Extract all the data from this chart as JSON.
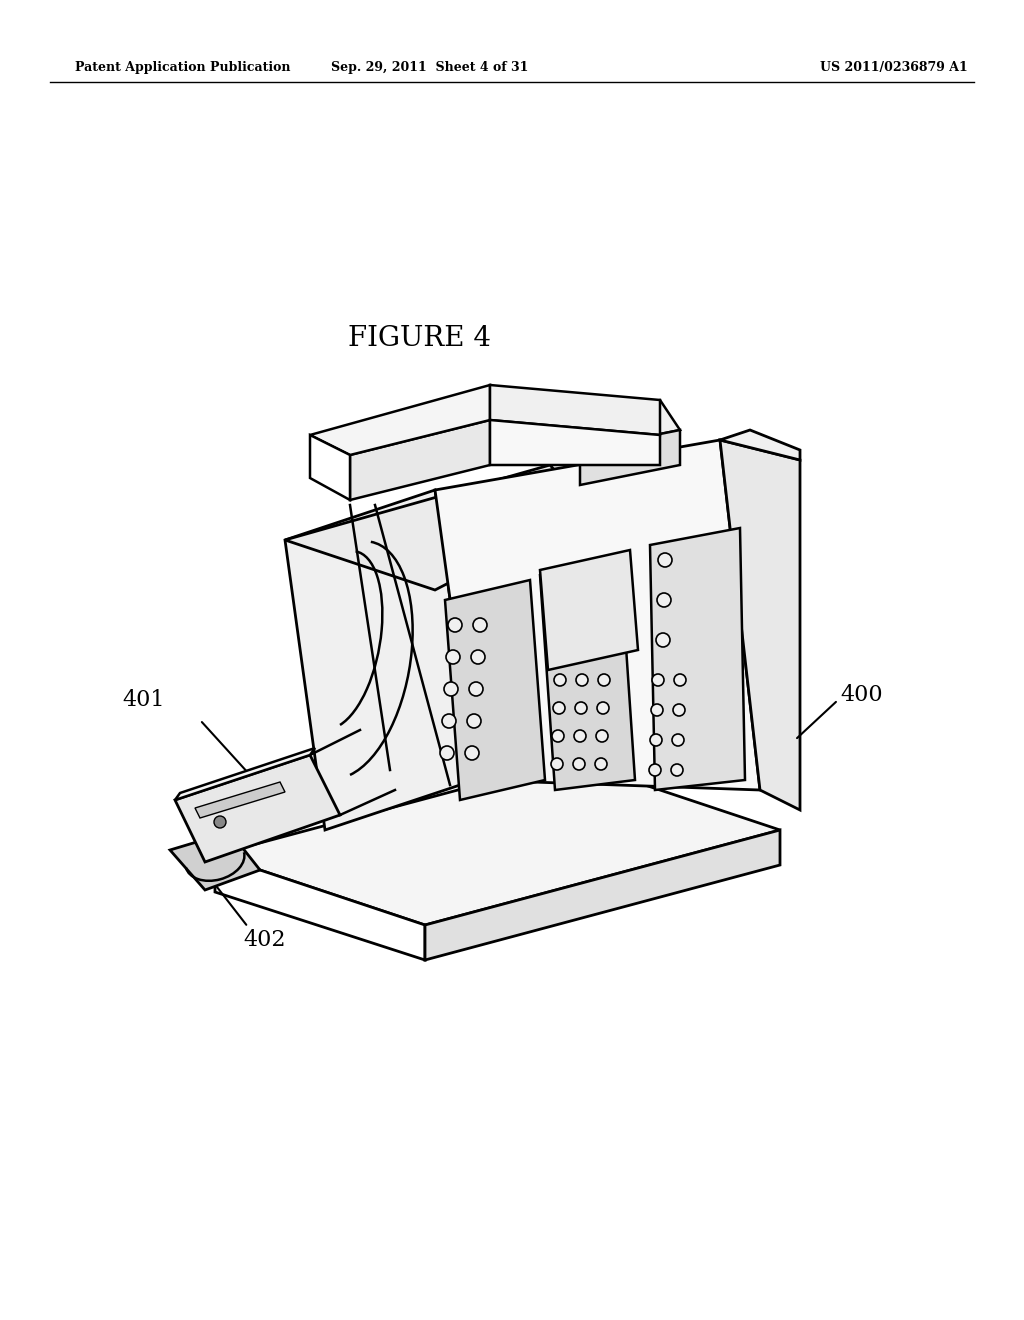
{
  "bg_color": "#ffffff",
  "header_left": "Patent Application Publication",
  "header_mid": "Sep. 29, 2011  Sheet 4 of 31",
  "header_right": "US 2011/0236879 A1",
  "figure_label": "FIGURE 4",
  "ref_400": "400",
  "ref_401": "401",
  "ref_402": "402",
  "line_color": "#000000",
  "line_width": 1.8,
  "lw_thin": 1.0,
  "lw_thick": 2.0
}
